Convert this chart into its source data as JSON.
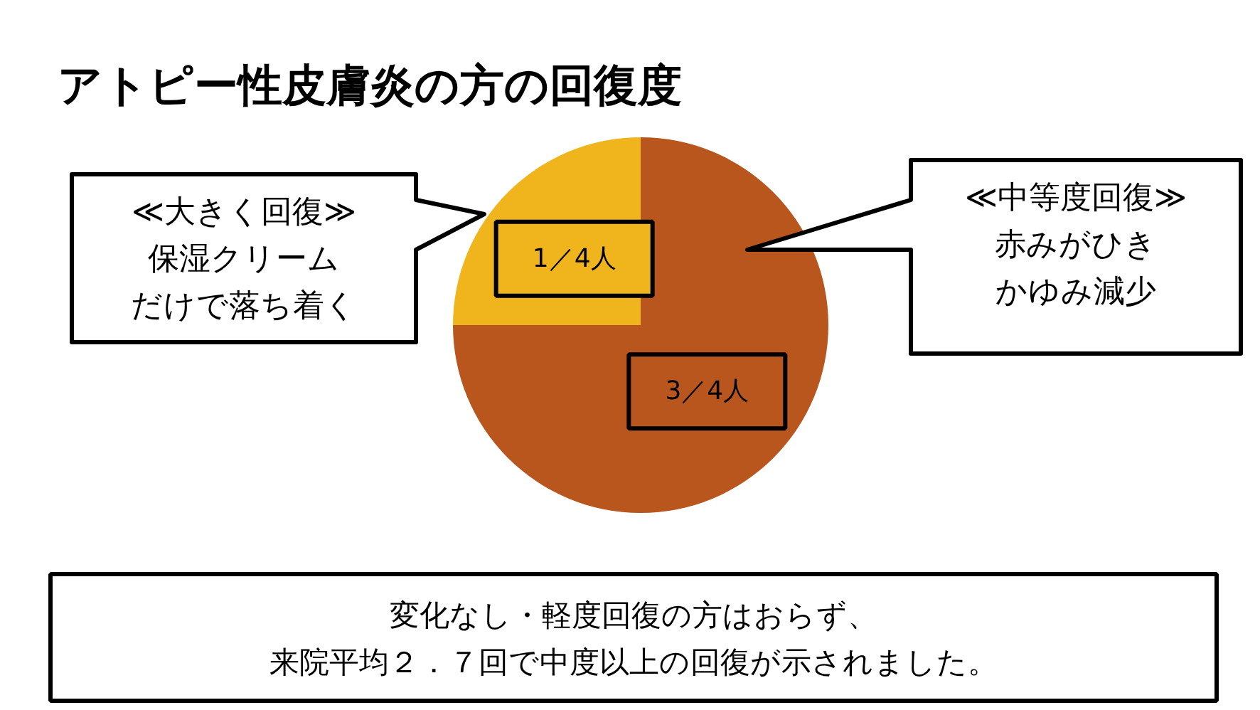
{
  "chart_data": {
    "type": "pie",
    "title": "アトピー性皮膚炎の方の回復度",
    "categories": [
      "≪大きく回復≫",
      "≪中等度回復≫"
    ],
    "values": [
      1,
      3
    ],
    "colors": [
      "#f0b41c",
      "#b9561e"
    ],
    "value_labels": [
      "1／4人",
      "3／4人"
    ],
    "annotations": [
      "保湿クリーム",
      "だけで落ち着く",
      "赤みがひき",
      "かゆみ減少",
      "変化なし・軽度回復の方はおらず、",
      "来院平均２．７回で中度以上の回復が示されました。"
    ]
  }
}
